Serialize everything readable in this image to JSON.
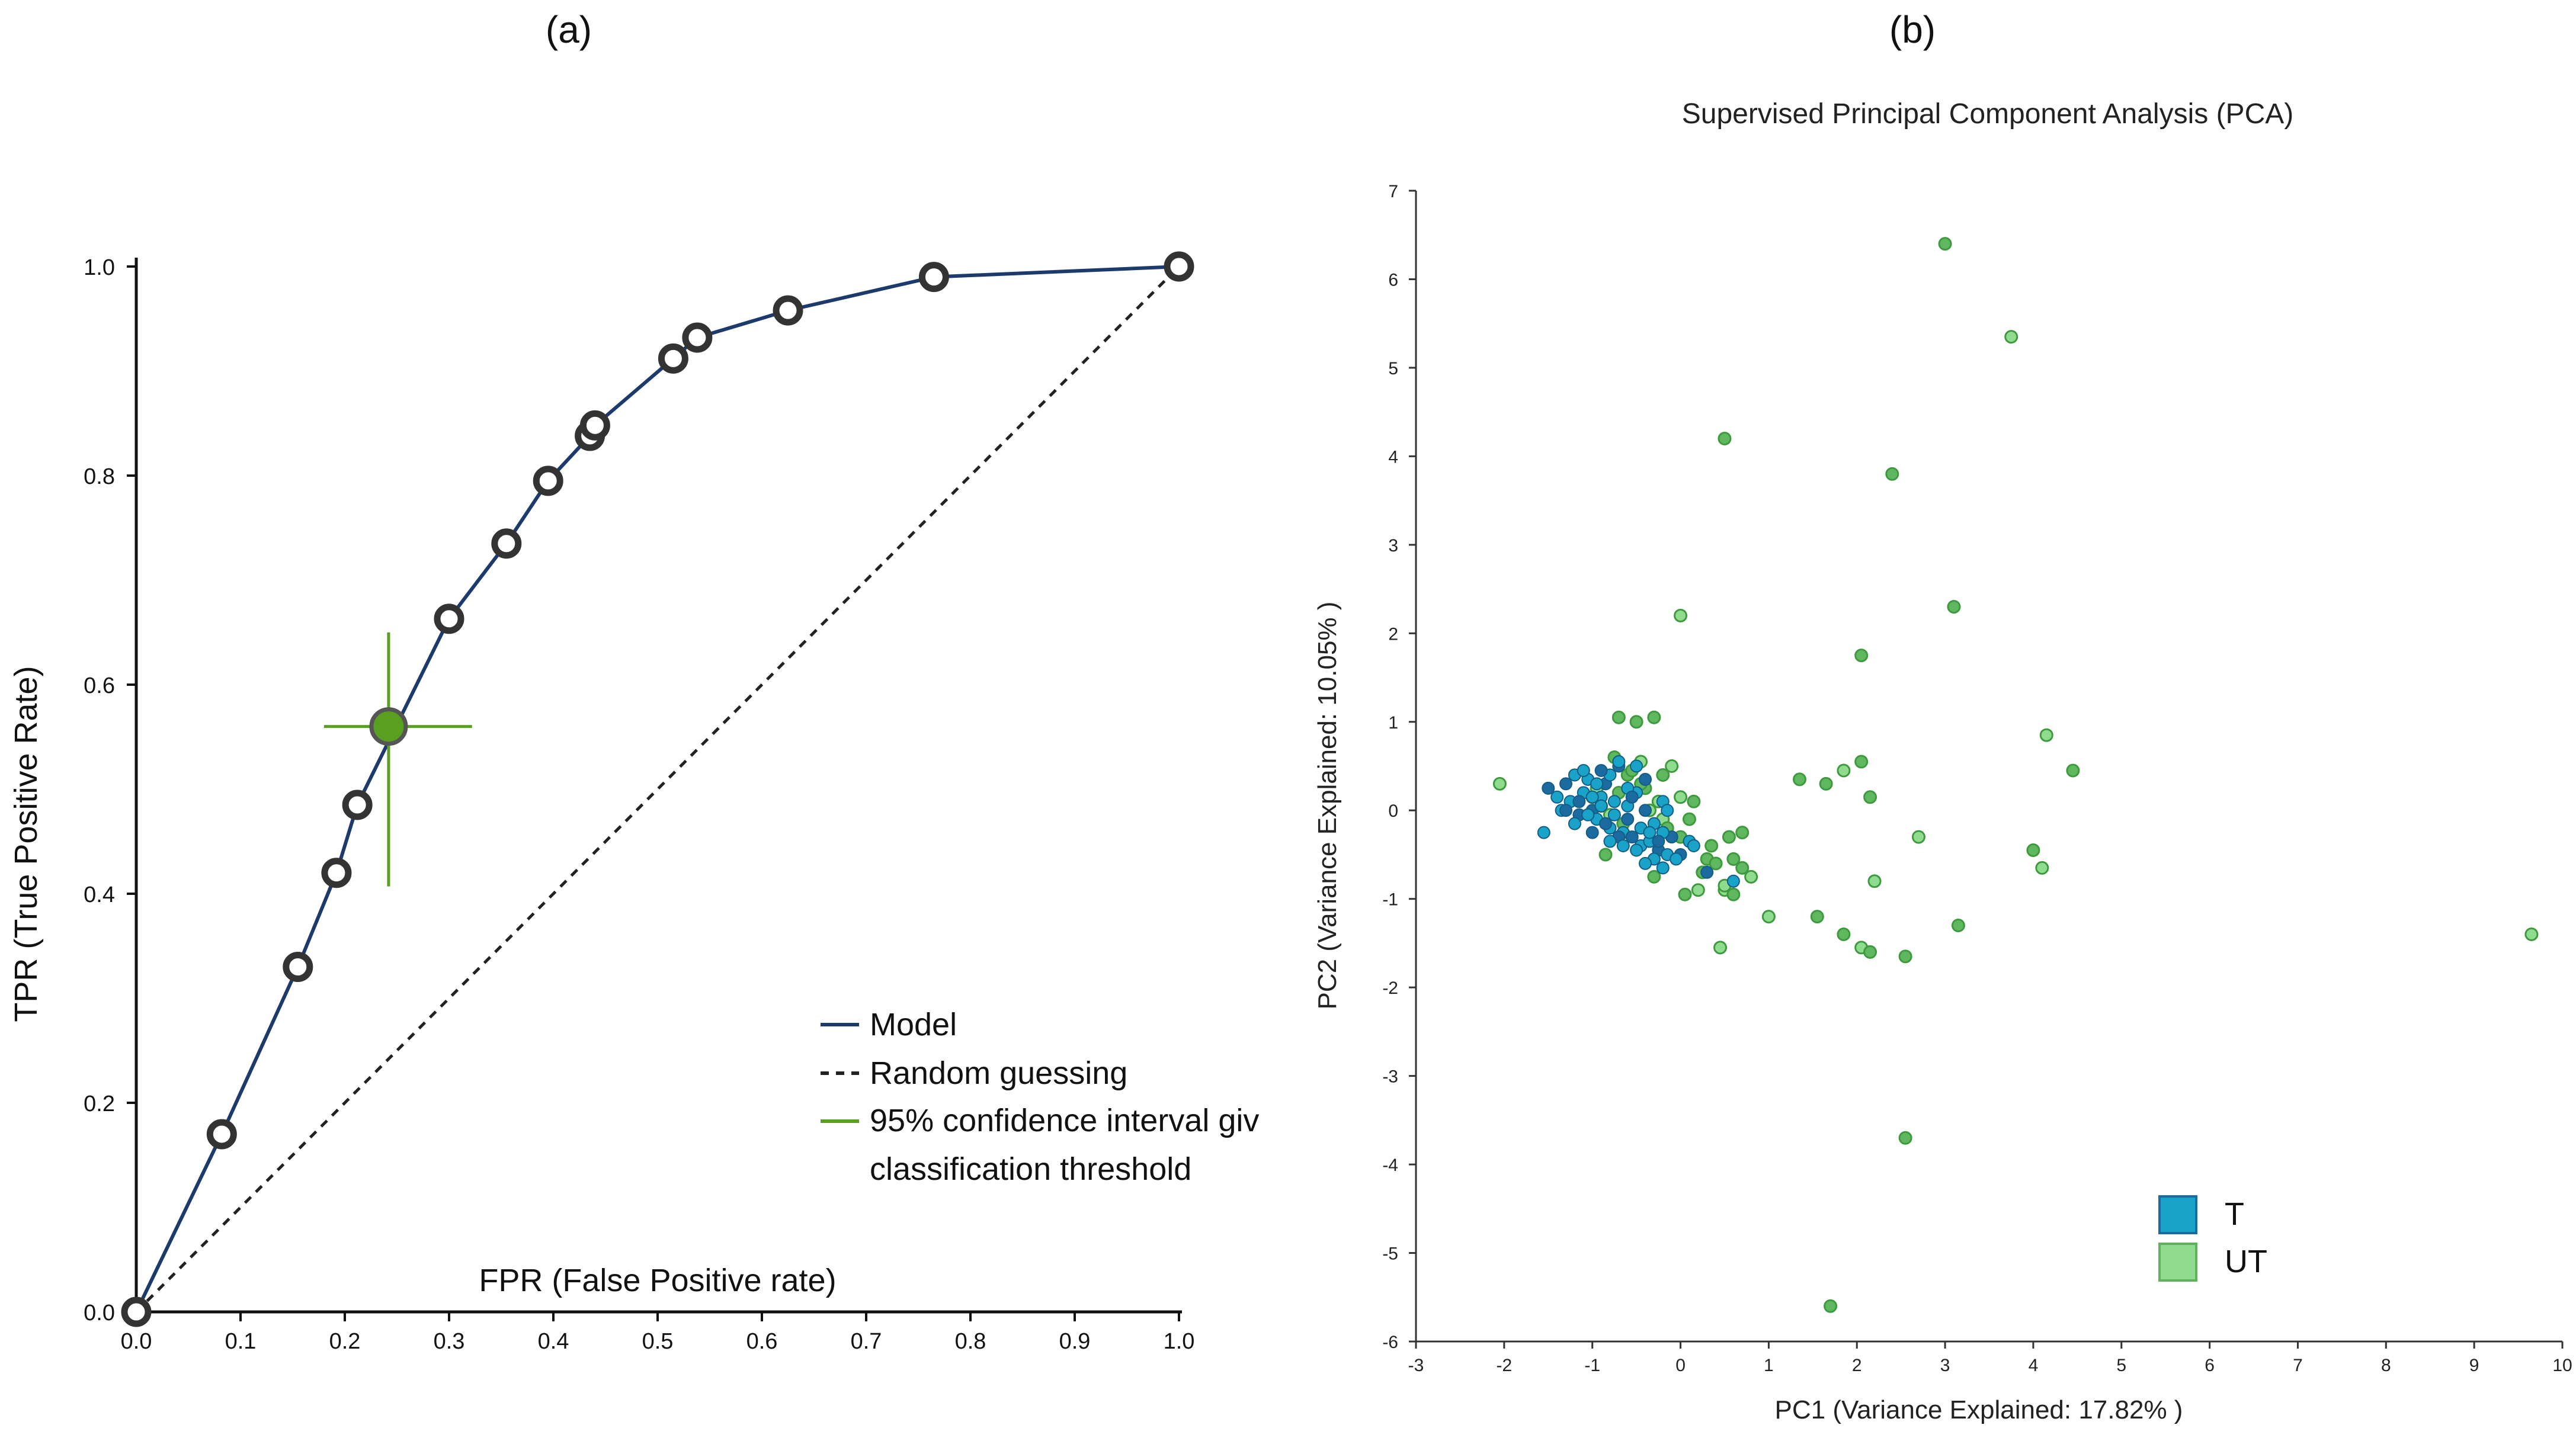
{
  "panels": {
    "a": {
      "label": "(a)",
      "chart_data": {
        "type": "line",
        "title": "",
        "xlabel": "FPR (False Positive rate)",
        "ylabel": "TPR (True Positive Rate)",
        "xlim": [
          0,
          1
        ],
        "ylim": [
          0,
          1
        ],
        "xticks": [
          "0.0",
          "0.1",
          "0.2",
          "0.3",
          "0.4",
          "0.5",
          "0.6",
          "0.7",
          "0.8",
          "0.9",
          "1.0"
        ],
        "yticks": [
          "0.0",
          "0.2",
          "0.4",
          "0.6",
          "0.8",
          "1.0"
        ],
        "series": [
          {
            "name": "Model",
            "color": "#1c3a6b",
            "x": [
              0.0,
              0.082,
              0.155,
              0.192,
              0.212,
              0.3,
              0.355,
              0.395,
              0.435,
              0.44,
              0.515,
              0.538,
              0.625,
              0.765,
              1.0
            ],
            "y": [
              0.0,
              0.17,
              0.33,
              0.42,
              0.485,
              0.663,
              0.735,
              0.795,
              0.838,
              0.848,
              0.912,
              0.932,
              0.958,
              0.99,
              1.0
            ]
          },
          {
            "name": "Random guessing",
            "color": "#222222",
            "style": "dashed",
            "x": [
              0.0,
              1.0
            ],
            "y": [
              0.0,
              1.0
            ]
          }
        ],
        "threshold_point": {
          "name": "95% confidence interval giv classification threshold",
          "color": "#5aa020",
          "x": 0.242,
          "y": 0.56,
          "x_ci": [
            0.18,
            0.322
          ],
          "y_ci": [
            0.407,
            0.65
          ]
        },
        "legend": {
          "position": "bottom-right",
          "items": [
            "Model",
            "Random guessing",
            "95% confidence interval giv",
            "classification threshold"
          ]
        }
      }
    },
    "b": {
      "label": "(b)",
      "chart_data": {
        "type": "scatter",
        "title": "Supervised Principal Component Analysis (PCA)",
        "xlabel": "PC1 (Variance Explained: 17.82% )",
        "ylabel": "PC2 (Variance Explained: 10.05% )",
        "xlim": [
          -3,
          10
        ],
        "ylim": [
          -6,
          7
        ],
        "xticks": [
          "-3",
          "-2",
          "-1",
          "0",
          "1",
          "2",
          "3",
          "4",
          "5",
          "6",
          "7",
          "8",
          "9",
          "10"
        ],
        "yticks": [
          "-6",
          "-5",
          "-4",
          "-3",
          "-2",
          "-1",
          "0",
          "1",
          "2",
          "3",
          "4",
          "5",
          "6",
          "7"
        ],
        "legend": {
          "position": "bottom-right",
          "items": [
            "T",
            "UT"
          ]
        },
        "series": [
          {
            "name": "T",
            "color": "#1aa3c8",
            "dark_color": "#1b6aa0",
            "x": [
              -1.5,
              -1.4,
              -1.35,
              -1.3,
              -1.25,
              -1.2,
              -1.15,
              -1.1,
              -1.05,
              -1.0,
              -0.95,
              -0.9,
              -0.85,
              -0.8,
              -0.75,
              -0.7,
              -0.65,
              -0.6,
              -0.55,
              -0.5,
              -0.45,
              -0.4,
              -0.35,
              -0.3,
              -0.25,
              -0.2,
              -0.15,
              -0.1,
              -1.2,
              -1.1,
              -1.0,
              -0.9,
              -0.8,
              -0.7,
              -0.6,
              -0.5,
              -0.4,
              -0.3,
              -0.2,
              -1.3,
              -1.0,
              -0.8,
              -0.6,
              -0.4,
              -0.2,
              0.0,
              0.1,
              -1.55,
              -0.9,
              -0.7,
              -0.5,
              0.3,
              0.6,
              -1.05,
              -0.85,
              -0.65,
              -0.45,
              -0.25,
              -0.05,
              0.15,
              -1.15,
              -0.95,
              -0.75,
              -0.55,
              -0.35,
              -0.15
            ],
            "y": [
              0.25,
              0.15,
              0.0,
              0.3,
              0.1,
              0.4,
              -0.05,
              0.2,
              0.35,
              0.0,
              -0.1,
              0.15,
              0.3,
              -0.2,
              0.1,
              0.5,
              -0.25,
              0.05,
              -0.3,
              0.2,
              -0.4,
              0.0,
              -0.35,
              -0.15,
              -0.45,
              0.1,
              -0.5,
              -0.3,
              -0.15,
              0.45,
              -0.25,
              0.05,
              0.4,
              -0.3,
              0.25,
              -0.45,
              0.35,
              -0.55,
              -0.25,
              0.0,
              0.15,
              -0.35,
              -0.1,
              -0.6,
              -0.65,
              -0.5,
              -0.35,
              -0.25,
              0.45,
              0.55,
              0.5,
              -0.7,
              -0.8,
              -0.05,
              -0.15,
              -0.4,
              -0.2,
              -0.35,
              -0.55,
              -0.4,
              0.1,
              0.3,
              -0.05,
              0.15,
              -0.25,
              0.0
            ]
          },
          {
            "name": "UT",
            "color": "#8fdc8f",
            "dark_color": "#3f9a3f",
            "x": [
              -2.05,
              -1.0,
              -0.9,
              -0.8,
              -0.7,
              -0.5,
              -0.45,
              -0.3,
              -0.2,
              -0.1,
              0.0,
              0.1,
              0.2,
              0.3,
              0.4,
              0.5,
              0.6,
              0.7,
              0.8,
              -0.3,
              0.05,
              0.5,
              0.7,
              0.55,
              1.0,
              1.35,
              1.65,
              1.85,
              2.05,
              2.15,
              2.2,
              1.55,
              1.85,
              2.05,
              2.15,
              2.55,
              2.7,
              3.15,
              3.0,
              3.75,
              0.5,
              2.4,
              0.0,
              3.1,
              2.05,
              4.15,
              4.45,
              4.0,
              4.1,
              2.55,
              1.7,
              9.65,
              -0.6,
              -0.4,
              -0.2,
              0.15,
              0.35,
              0.45,
              -0.75,
              -0.55,
              -0.35,
              -0.15,
              0.25,
              -0.95,
              -0.65,
              -0.45,
              -0.25,
              -0.85,
              -0.7,
              0.0,
              0.6
            ],
            "y": [
              0.3,
              0.15,
              0.05,
              -0.05,
              1.05,
              1.0,
              0.55,
              1.05,
              0.4,
              0.5,
              -0.3,
              -0.1,
              -0.9,
              -0.55,
              -0.6,
              -0.9,
              -0.95,
              -0.65,
              -0.75,
              -0.75,
              -0.95,
              -0.85,
              -0.25,
              -0.3,
              -1.2,
              0.35,
              0.3,
              0.45,
              0.55,
              0.15,
              -0.8,
              -1.2,
              -1.4,
              -1.55,
              -1.6,
              -1.65,
              -0.3,
              -1.3,
              6.4,
              5.35,
              4.2,
              3.8,
              2.2,
              2.3,
              1.75,
              0.85,
              0.45,
              -0.45,
              -0.65,
              -3.7,
              -5.6,
              -1.4,
              0.4,
              0.25,
              -0.1,
              0.1,
              -0.4,
              -1.55,
              0.6,
              0.45,
              0.0,
              -0.2,
              -0.7,
              0.25,
              -0.15,
              0.3,
              0.1,
              -0.5,
              0.2,
              0.15,
              -0.55
            ]
          }
        ]
      }
    }
  }
}
